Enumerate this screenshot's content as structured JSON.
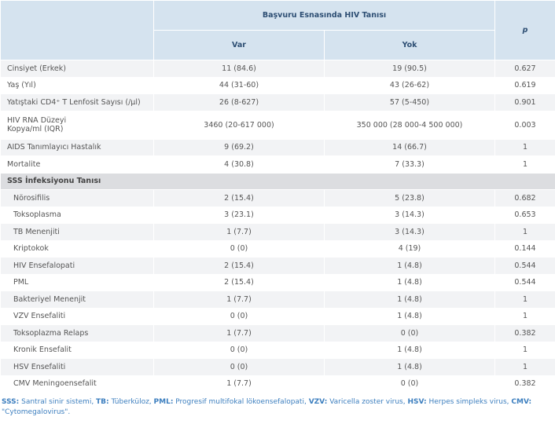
{
  "table": {
    "header": {
      "group": "Başvuru Esnasında HIV Tanısı",
      "p": "p",
      "columns": [
        "Var",
        "Yok"
      ]
    },
    "rows": [
      [
        "Cinsiyet (Erkek)",
        "11 (84.6)",
        "19 (90.5)",
        "0.627"
      ],
      [
        "Yaş (Yıl)",
        "44 (31-60)",
        "43 (26-62)",
        "0.619"
      ],
      [
        "Yatıştaki CD4⁺ T Lenfosit Sayısı (/µl)",
        "26 (8-627)",
        "57 (5-450)",
        "0.901"
      ],
      [
        "HIV RNA Düzeyi\nKopya/ml (IQR)",
        "3460 (20-617 000)",
        "350 000 (28 000-4 500 000)",
        "0.003"
      ],
      [
        "AIDS Tanımlayıcı Hastalık",
        "9 (69.2)",
        "14 (66.7)",
        "1"
      ],
      [
        "Mortalite",
        "4 (30.8)",
        "7 (33.3)",
        "1"
      ]
    ],
    "section": {
      "title": "SSS İnfeksiyonu Tanısı",
      "rows": [
        [
          "Nörosifilis",
          "2 (15.4)",
          "5 (23.8)",
          "0.682"
        ],
        [
          "Toksoplasma",
          "3 (23.1)",
          "3 (14.3)",
          "0.653"
        ],
        [
          "TB Menenjiti",
          "1 (7.7)",
          "3 (14.3)",
          "1"
        ],
        [
          "Kriptokok",
          "0 (0)",
          "4 (19)",
          "0.144"
        ],
        [
          "HIV Ensefalopati",
          "2 (15.4)",
          "1 (4.8)",
          "0.544"
        ],
        [
          "PML",
          "2 (15.4)",
          "1 (4.8)",
          "0.544"
        ],
        [
          "Bakteriyel Menenjit",
          "1 (7.7)",
          "1 (4.8)",
          "1"
        ],
        [
          "VZV Ensefaliti",
          "0 (0)",
          "1 (4.8)",
          "1"
        ],
        [
          "Toksoplazma Relaps",
          "1 (7.7)",
          "0 (0)",
          "0.382"
        ],
        [
          "Kronik Ensefalit",
          "0 (0)",
          "1 (4.8)",
          "1"
        ],
        [
          "HSV Ensefaliti",
          "0 (0)",
          "1 (4.8)",
          "1"
        ],
        [
          "CMV Meningoensefalit",
          "1 (7.7)",
          "0 (0)",
          "0.382"
        ]
      ]
    }
  },
  "footnote": [
    {
      "abbr": "SSS:",
      "text": " Santral sinir sistemi, "
    },
    {
      "abbr": "TB:",
      "text": " Tüberküloz, "
    },
    {
      "abbr": "PML:",
      "text": " Progresif multifokal lökoensefalopati, "
    },
    {
      "abbr": "VZV:",
      "text": " Varicella  zoster virus, "
    },
    {
      "abbr": "HSV:",
      "text": " Herpes simpleks virus, "
    },
    {
      "abbr": "CMV:",
      "text": " \"Cytomegalovirus\"."
    }
  ]
}
